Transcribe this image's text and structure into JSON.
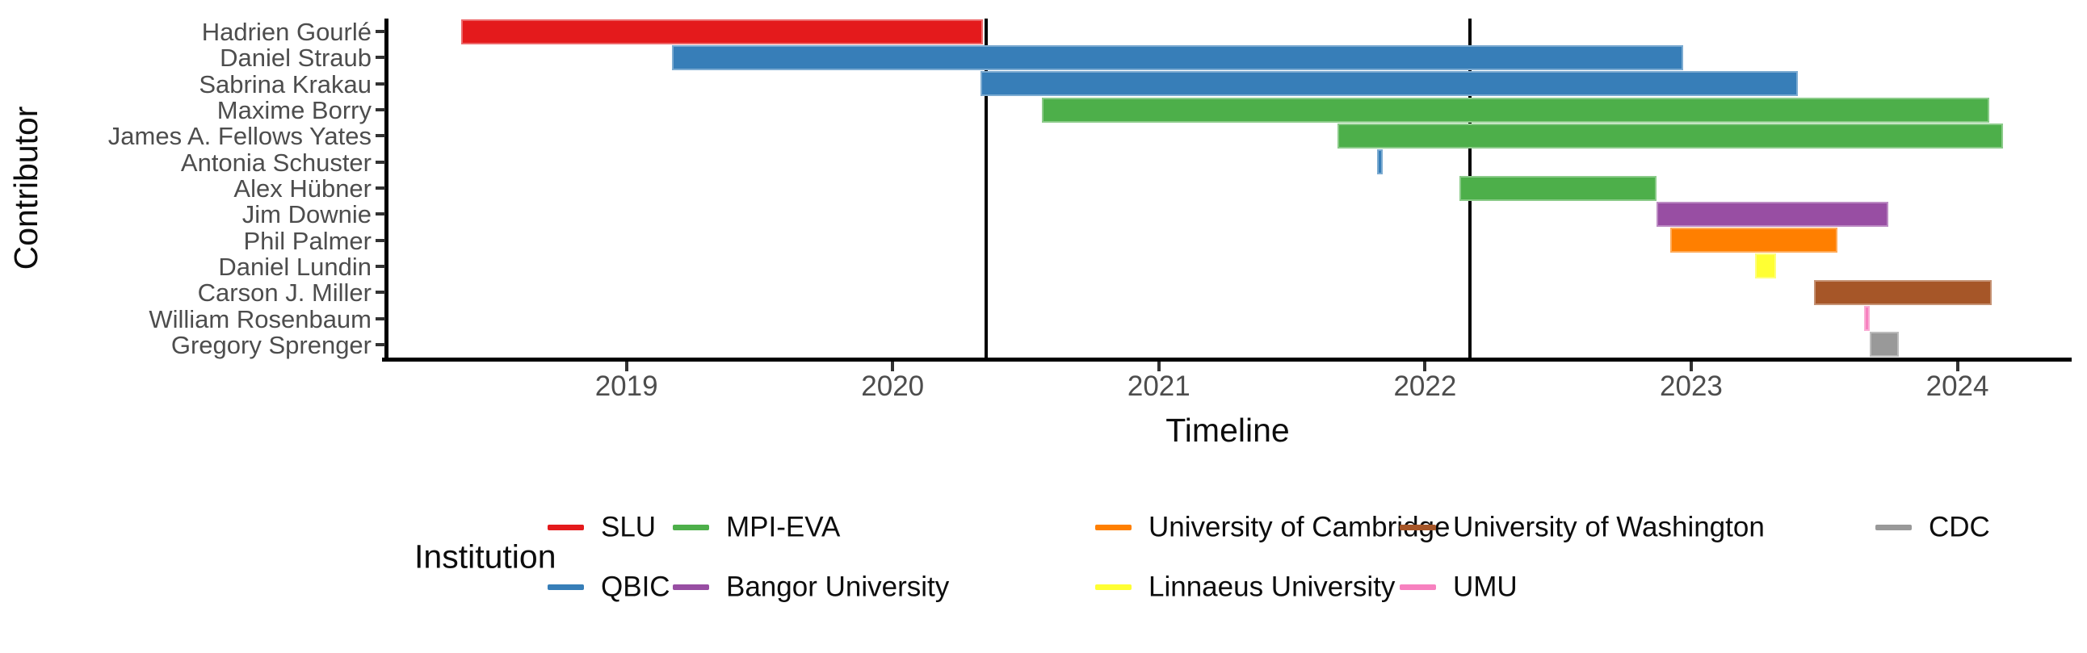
{
  "chart_data": {
    "type": "bar",
    "subtype": "gantt-timeline",
    "title": "",
    "xlabel": "Timeline",
    "ylabel": "Contributor",
    "x_ticks": [
      2019,
      2020,
      2021,
      2022,
      2023,
      2024
    ],
    "x_domain": [
      2018.1,
      2024.42
    ],
    "grid": false,
    "legend_position": "bottom",
    "event_lines": [
      2020.35,
      2022.17
    ],
    "categories": [
      "Hadrien Gourlé",
      "Daniel Straub",
      "Sabrina Krakau",
      "Maxime Borry",
      "James A. Fellows Yates",
      "Antonia Schuster",
      "Alex Hübner",
      "Jim Downie",
      "Phil Palmer",
      "Daniel Lundin",
      "Carson J. Miller",
      "William Rosenbaum",
      "Gregory Sprenger"
    ],
    "bars": [
      {
        "contributor": "Hadrien Gourlé",
        "institution": "SLU",
        "start": 2018.38,
        "end": 2020.34
      },
      {
        "contributor": "Daniel Straub",
        "institution": "QBIC",
        "start": 2019.17,
        "end": 2022.97
      },
      {
        "contributor": "Sabrina Krakau",
        "institution": "QBIC",
        "start": 2020.33,
        "end": 2023.4
      },
      {
        "contributor": "Maxime Borry",
        "institution": "MPI-EVA",
        "start": 2020.56,
        "end": 2024.12
      },
      {
        "contributor": "James A. Fellows Yates",
        "institution": "MPI-EVA",
        "start": 2021.67,
        "end": 2024.17
      },
      {
        "contributor": "Antonia Schuster",
        "institution": "QBIC",
        "start": 2021.82,
        "end": 2021.84
      },
      {
        "contributor": "Alex Hübner",
        "institution": "MPI-EVA",
        "start": 2022.13,
        "end": 2022.87
      },
      {
        "contributor": "Jim Downie",
        "institution": "Bangor University",
        "start": 2022.87,
        "end": 2023.74
      },
      {
        "contributor": "Phil Palmer",
        "institution": "University of Cambridge",
        "start": 2022.92,
        "end": 2023.55
      },
      {
        "contributor": "Daniel Lundin",
        "institution": "Linnaeus University",
        "start": 2023.24,
        "end": 2023.32
      },
      {
        "contributor": "Carson J. Miller",
        "institution": "University of Washington",
        "start": 2023.46,
        "end": 2024.13
      },
      {
        "contributor": "William Rosenbaum",
        "institution": "UMU",
        "start": 2023.65,
        "end": 2023.67
      },
      {
        "contributor": "Gregory Sprenger",
        "institution": "CDC",
        "start": 2023.67,
        "end": 2023.78
      }
    ],
    "legend": {
      "title": "Institution",
      "entries": [
        {
          "label": "SLU",
          "color": "#E41A1C"
        },
        {
          "label": "QBIC",
          "color": "#377EB8"
        },
        {
          "label": "MPI-EVA",
          "color": "#4DAF4A"
        },
        {
          "label": "Bangor University",
          "color": "#984EA3"
        },
        {
          "label": "University of Cambridge",
          "color": "#FF7F00"
        },
        {
          "label": "Linnaeus University",
          "color": "#FFFF33"
        },
        {
          "label": "University of Washington",
          "color": "#A65628"
        },
        {
          "label": "UMU",
          "color": "#F781BF"
        },
        {
          "label": "CDC",
          "color": "#999999"
        }
      ]
    },
    "colors": {
      "axis_text": "#4d4d4d",
      "axis_line": "#000000",
      "event_line": "#000000",
      "background": "#ffffff"
    }
  }
}
